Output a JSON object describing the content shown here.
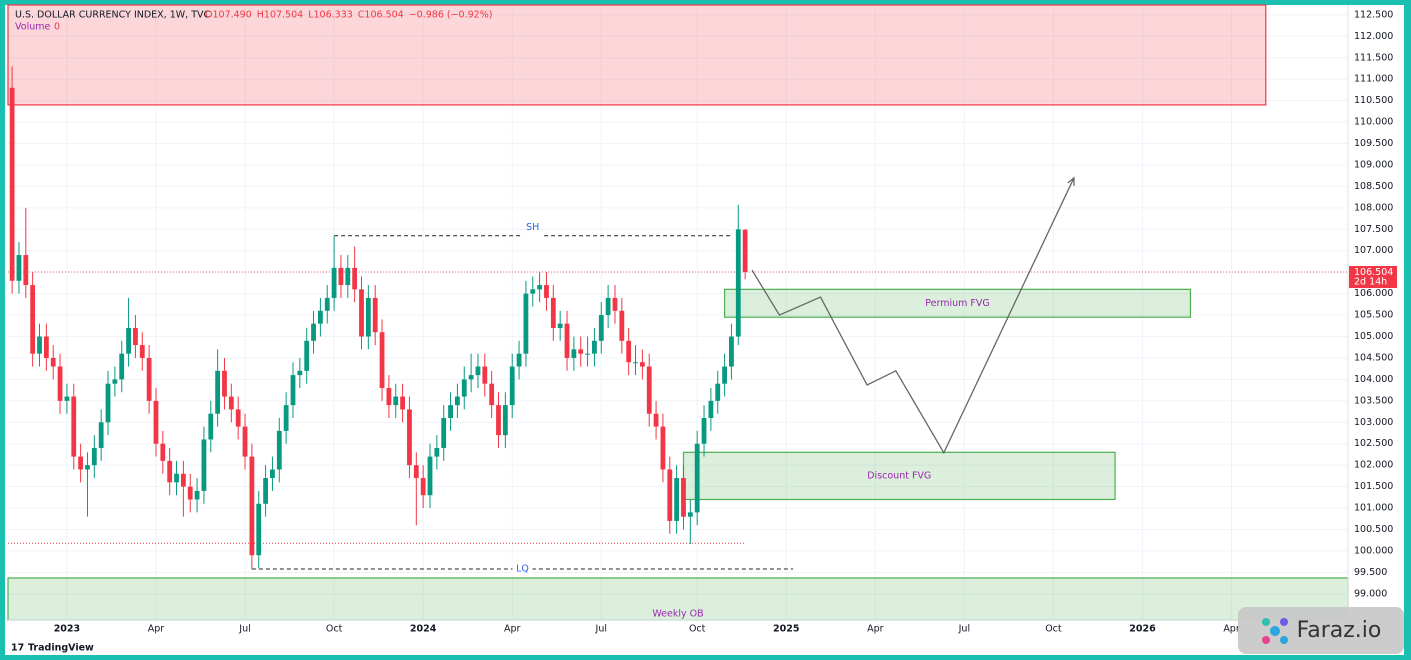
{
  "chart_data": {
    "type": "candlestick",
    "title": "U.S. DOLLAR CURRENCY INDEX, 1W, TVC",
    "ohlc_labels": [
      "O107.490",
      "H107.504",
      "L106.333",
      "C106.504"
    ],
    "change_label": "−0.986 (−0.92%)",
    "volume_label": "Volume",
    "volume": 0,
    "up_color": "#089981",
    "down_color": "#f23645",
    "xlim": [
      -0.6,
      195
    ],
    "ylim": [
      98.39,
      112.73
    ],
    "xticks": [
      {
        "value": 8,
        "label": "2023"
      },
      {
        "value": 21,
        "label": "Apr"
      },
      {
        "value": 34,
        "label": "Jul"
      },
      {
        "value": 47,
        "label": "Oct"
      },
      {
        "value": 60,
        "label": "2024"
      },
      {
        "value": 73,
        "label": "Apr"
      },
      {
        "value": 86,
        "label": "Jul"
      },
      {
        "value": 100,
        "label": "Oct"
      },
      {
        "value": 113,
        "label": "2025"
      },
      {
        "value": 126,
        "label": "Apr"
      },
      {
        "value": 139,
        "label": "Jul"
      },
      {
        "value": 152,
        "label": "Oct"
      },
      {
        "value": 165,
        "label": "2026"
      },
      {
        "value": 178,
        "label": "Apr"
      }
    ],
    "yticks": [
      {
        "value": 99,
        "label": "99.000"
      },
      {
        "value": 99.5,
        "label": "99.500"
      },
      {
        "value": 100,
        "label": "100.000"
      },
      {
        "value": 100.5,
        "label": "100.500"
      },
      {
        "value": 101,
        "label": "101.000"
      },
      {
        "value": 101.5,
        "label": "101.500"
      },
      {
        "value": 102,
        "label": "102.000"
      },
      {
        "value": 102.5,
        "label": "102.500"
      },
      {
        "value": 103,
        "label": "103.000"
      },
      {
        "value": 103.5,
        "label": "103.500"
      },
      {
        "value": 104,
        "label": "104.000"
      },
      {
        "value": 104.5,
        "label": "104.500"
      },
      {
        "value": 105,
        "label": "105.000"
      },
      {
        "value": 105.5,
        "label": "105.500"
      },
      {
        "value": 106,
        "label": "106.000"
      },
      {
        "value": 106.5,
        "label": "106.500"
      },
      {
        "value": 107,
        "label": "107.000"
      },
      {
        "value": 107.5,
        "label": "107.500"
      },
      {
        "value": 108,
        "label": "108.000"
      },
      {
        "value": 108.5,
        "label": "108.500"
      },
      {
        "value": 109,
        "label": "109.000"
      },
      {
        "value": 109.5,
        "label": "109.500"
      },
      {
        "value": 110,
        "label": "110.000"
      },
      {
        "value": 110.5,
        "label": "110.500"
      },
      {
        "value": 111,
        "label": "111.000"
      },
      {
        "value": 111.5,
        "label": "111.500"
      },
      {
        "value": 112,
        "label": "112.000"
      },
      {
        "value": 112.5,
        "label": "112.500"
      }
    ],
    "last_price": {
      "value": 106.504,
      "label": "106.504"
    },
    "countdown": "2d 14h",
    "candles": [
      [
        110.8,
        111.3,
        106.0,
        106.3
      ],
      [
        106.3,
        107.2,
        106.0,
        106.9
      ],
      [
        106.9,
        108.0,
        105.9,
        106.2
      ],
      [
        106.2,
        106.5,
        104.3,
        104.6
      ],
      [
        104.6,
        105.3,
        104.3,
        105.0
      ],
      [
        105.0,
        105.3,
        104.2,
        104.5
      ],
      [
        104.5,
        104.8,
        104.0,
        104.3
      ],
      [
        104.3,
        104.6,
        103.2,
        103.5
      ],
      [
        103.5,
        103.9,
        103.2,
        103.6
      ],
      [
        103.6,
        103.9,
        101.9,
        102.2
      ],
      [
        102.2,
        102.5,
        101.6,
        101.9
      ],
      [
        101.9,
        102.3,
        100.8,
        102.0
      ],
      [
        102.0,
        102.7,
        101.7,
        102.4
      ],
      [
        102.4,
        103.3,
        102.1,
        103.0
      ],
      [
        103.0,
        104.2,
        102.7,
        103.9
      ],
      [
        103.9,
        104.3,
        103.6,
        104.0
      ],
      [
        104.0,
        104.9,
        103.7,
        104.6
      ],
      [
        104.6,
        105.9,
        104.3,
        105.2
      ],
      [
        105.2,
        105.5,
        104.5,
        104.8
      ],
      [
        104.8,
        105.1,
        104.2,
        104.5
      ],
      [
        104.5,
        104.8,
        103.2,
        103.5
      ],
      [
        103.5,
        103.8,
        102.2,
        102.5
      ],
      [
        102.5,
        102.8,
        101.8,
        102.1
      ],
      [
        102.1,
        102.4,
        101.3,
        101.6
      ],
      [
        101.6,
        102.1,
        101.3,
        101.8
      ],
      [
        101.8,
        102.1,
        100.8,
        101.5
      ],
      [
        101.5,
        101.8,
        100.9,
        101.2
      ],
      [
        101.2,
        101.7,
        100.9,
        101.4
      ],
      [
        101.4,
        102.9,
        101.1,
        102.6
      ],
      [
        102.6,
        103.5,
        102.3,
        103.2
      ],
      [
        103.2,
        104.7,
        102.9,
        104.2
      ],
      [
        104.2,
        104.5,
        103.3,
        103.6
      ],
      [
        103.6,
        103.9,
        103.0,
        103.3
      ],
      [
        103.3,
        103.6,
        102.6,
        102.9
      ],
      [
        102.9,
        103.2,
        101.9,
        102.2
      ],
      [
        102.2,
        102.5,
        99.58,
        99.9
      ],
      [
        99.9,
        101.4,
        99.6,
        101.1
      ],
      [
        101.1,
        102.0,
        100.8,
        101.7
      ],
      [
        101.7,
        102.2,
        101.4,
        101.9
      ],
      [
        101.9,
        103.1,
        101.6,
        102.8
      ],
      [
        102.8,
        103.7,
        102.5,
        103.4
      ],
      [
        103.4,
        104.4,
        103.1,
        104.1
      ],
      [
        104.1,
        104.5,
        103.8,
        104.2
      ],
      [
        104.2,
        105.2,
        103.9,
        104.9
      ],
      [
        104.9,
        105.6,
        104.6,
        105.3
      ],
      [
        105.3,
        105.9,
        105.0,
        105.6
      ],
      [
        105.6,
        106.2,
        105.3,
        105.9
      ],
      [
        105.9,
        107.35,
        105.6,
        106.6
      ],
      [
        106.6,
        106.9,
        105.9,
        106.2
      ],
      [
        106.2,
        106.9,
        105.9,
        106.6
      ],
      [
        106.6,
        107.1,
        105.8,
        106.1
      ],
      [
        106.1,
        106.4,
        104.7,
        105.0
      ],
      [
        105.0,
        106.2,
        104.7,
        105.9
      ],
      [
        105.9,
        106.2,
        104.8,
        105.1
      ],
      [
        105.1,
        105.4,
        103.5,
        103.8
      ],
      [
        103.8,
        104.1,
        103.1,
        103.4
      ],
      [
        103.4,
        103.9,
        103.1,
        103.6
      ],
      [
        103.6,
        103.9,
        103.0,
        103.3
      ],
      [
        103.3,
        103.6,
        101.7,
        102.0
      ],
      [
        102.0,
        102.3,
        100.6,
        101.7
      ],
      [
        101.7,
        102.0,
        101.0,
        101.3
      ],
      [
        101.3,
        102.5,
        101.0,
        102.2
      ],
      [
        102.2,
        102.7,
        101.9,
        102.4
      ],
      [
        102.4,
        103.4,
        102.1,
        103.1
      ],
      [
        103.1,
        103.7,
        102.8,
        103.4
      ],
      [
        103.4,
        103.9,
        103.1,
        103.6
      ],
      [
        103.6,
        104.3,
        103.3,
        104.0
      ],
      [
        104.0,
        104.6,
        103.7,
        104.1
      ],
      [
        104.1,
        104.6,
        103.8,
        104.3
      ],
      [
        104.3,
        104.6,
        103.6,
        103.9
      ],
      [
        103.9,
        104.2,
        103.1,
        103.4
      ],
      [
        103.4,
        103.7,
        102.4,
        102.7
      ],
      [
        102.7,
        103.7,
        102.4,
        103.4
      ],
      [
        103.4,
        104.6,
        103.1,
        104.3
      ],
      [
        104.3,
        104.9,
        104.0,
        104.6
      ],
      [
        104.6,
        106.3,
        104.3,
        106.0
      ],
      [
        106.0,
        106.4,
        105.7,
        106.1
      ],
      [
        106.1,
        106.5,
        105.8,
        106.2
      ],
      [
        106.2,
        106.5,
        105.6,
        105.9
      ],
      [
        105.9,
        106.2,
        104.9,
        105.2
      ],
      [
        105.2,
        105.6,
        104.9,
        105.3
      ],
      [
        105.3,
        105.6,
        104.2,
        104.5
      ],
      [
        104.5,
        105.0,
        104.2,
        104.7
      ],
      [
        104.7,
        105.0,
        104.3,
        104.6
      ],
      [
        104.6,
        105.0,
        104.3,
        104.6
      ],
      [
        104.6,
        105.2,
        104.3,
        104.9
      ],
      [
        104.9,
        105.8,
        104.6,
        105.5
      ],
      [
        105.5,
        106.2,
        105.2,
        105.9
      ],
      [
        105.9,
        106.2,
        105.3,
        105.6
      ],
      [
        105.6,
        105.9,
        104.6,
        104.9
      ],
      [
        104.9,
        105.2,
        104.1,
        104.4
      ],
      [
        104.4,
        104.8,
        104.1,
        104.4
      ],
      [
        104.4,
        104.7,
        104.0,
        104.3
      ],
      [
        104.3,
        104.6,
        102.9,
        103.2
      ],
      [
        103.2,
        103.5,
        102.6,
        102.9
      ],
      [
        102.9,
        103.2,
        101.6,
        101.9
      ],
      [
        101.9,
        102.2,
        100.4,
        100.7
      ],
      [
        100.7,
        102.0,
        100.4,
        101.7
      ],
      [
        101.7,
        102.0,
        100.5,
        100.8
      ],
      [
        100.8,
        101.2,
        100.16,
        100.9
      ],
      [
        100.9,
        102.8,
        100.6,
        102.5
      ],
      [
        102.5,
        103.4,
        102.2,
        103.1
      ],
      [
        103.1,
        103.8,
        102.8,
        103.5
      ],
      [
        103.5,
        104.2,
        103.2,
        103.9
      ],
      [
        103.9,
        104.6,
        103.6,
        104.3
      ],
      [
        104.3,
        105.3,
        104.0,
        105.0
      ],
      [
        105.0,
        108.07,
        104.8,
        107.5
      ],
      [
        107.49,
        107.504,
        106.333,
        106.504
      ]
    ],
    "zones": [
      {
        "x": [
          -0.6,
          183
        ],
        "y": [
          110.4,
          112.73
        ],
        "color": "#f23645"
      },
      {
        "label": "Permium FVG",
        "x": [
          104,
          172
        ],
        "y": [
          105.45,
          106.1
        ],
        "color": "#4caf50"
      },
      {
        "label": "Discount FVG",
        "x": [
          98,
          161
        ],
        "y": [
          101.2,
          102.3
        ],
        "color": "#4caf50"
      },
      {
        "label": "Weekly OB",
        "x": [
          -0.6,
          195
        ],
        "y": [
          98.39,
          99.37
        ],
        "color": "#4caf50"
      }
    ],
    "levels": [
      {
        "label": "SH",
        "x": [
          47,
          105
        ],
        "y": 107.35,
        "color": "#222222"
      },
      {
        "label": "LQ",
        "x": [
          35,
          114
        ],
        "y": 99.58,
        "color": "#222222"
      },
      {
        "x": [
          -0.6,
          107
        ],
        "y": 100.18,
        "color": "#f23645"
      }
    ],
    "projection": {
      "x": [
        108,
        112,
        118,
        124.8,
        129,
        136,
        155
      ],
      "y": [
        106.55,
        105.5,
        105.92,
        103.87,
        104.2,
        102.29,
        108.7
      ],
      "color": "#666666"
    },
    "brand": "TradingView",
    "watermark": "Faraz.io"
  }
}
